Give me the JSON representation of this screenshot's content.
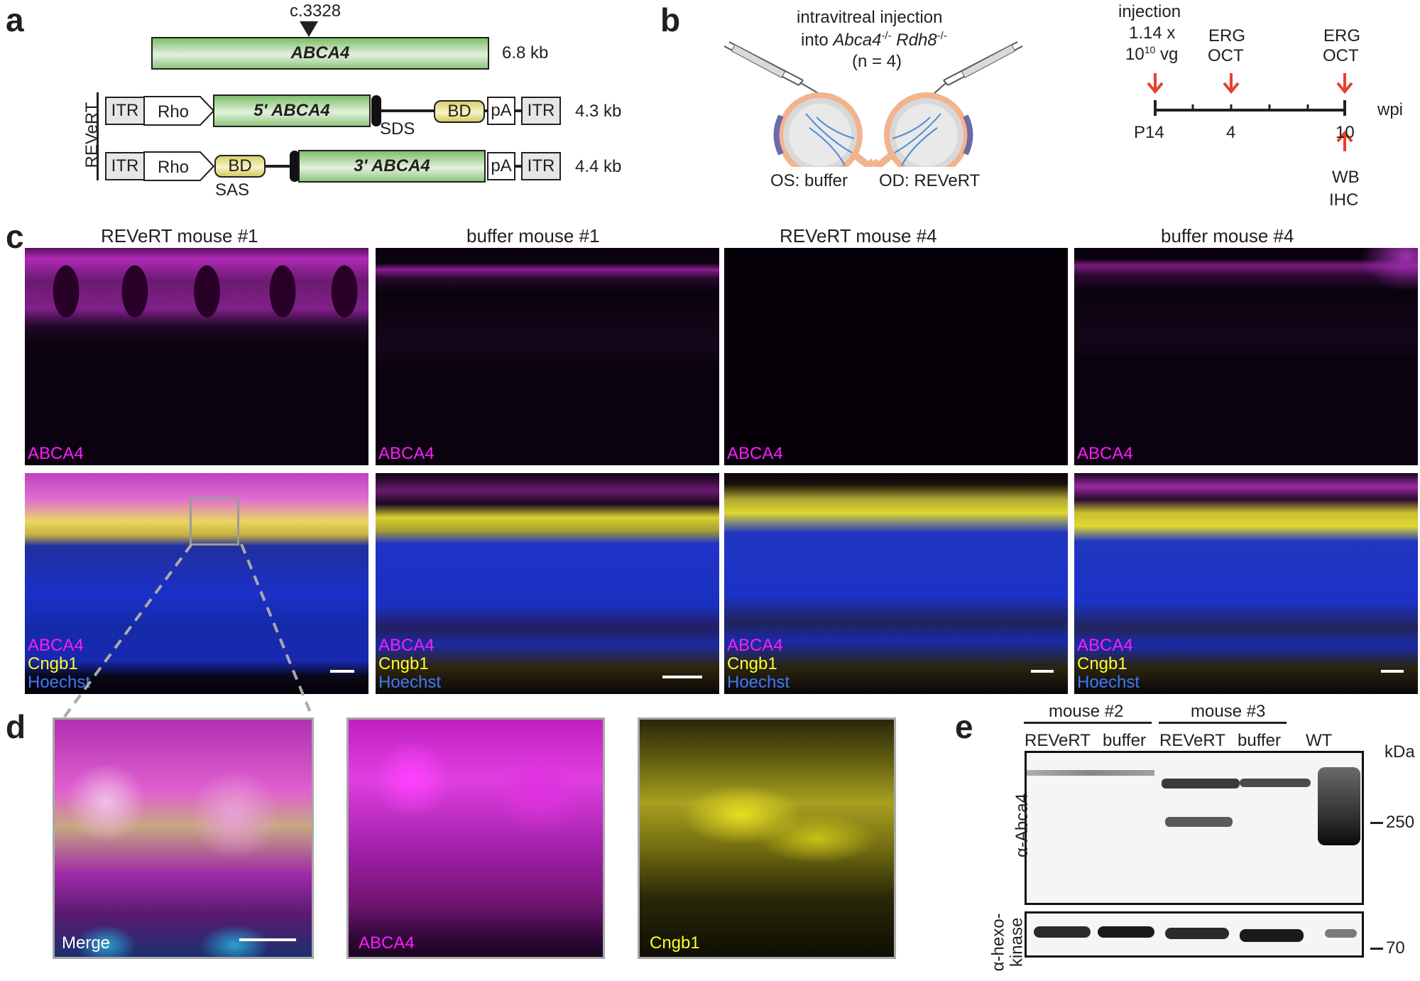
{
  "panel_a": {
    "label": "a",
    "mutation": "c.3328",
    "gene": "ABCA4",
    "gene_size": "6.8 kb",
    "side_label": "REVeRT",
    "vec1": {
      "itr_left": "ITR",
      "promoter": "Rho",
      "cds": "5' ABCA4",
      "sds": "SDS",
      "bd": "BD",
      "pa": "pA",
      "itr_right": "ITR",
      "size": "4.3 kb"
    },
    "vec2": {
      "itr_left": "ITR",
      "promoter": "Rho",
      "bd": "BD",
      "sas": "SAS",
      "cds": "3' ABCA4",
      "pa": "pA",
      "itr_right": "ITR",
      "size": "4.4 kb"
    }
  },
  "panel_b": {
    "label": "b",
    "title_line1": "intravitreal injection",
    "title_line2_prefix": "into ",
    "gene1": "Abca4",
    "sup1": "-/-",
    "gene2": "Rdh8",
    "sup2": "-/-",
    "n_text": "(n = 4)",
    "os_label": "OS: buffer",
    "od_label": "OD: REVeRT",
    "timeline": {
      "injection": "injection",
      "dose_line1": "1.14 x",
      "dose_base": "10",
      "dose_exp": "10",
      "dose_unit": " vg",
      "erg1": "ERG",
      "oct1": "OCT",
      "erg2": "ERG",
      "oct2": "OCT",
      "tick_p14": "P14",
      "tick_4": "4",
      "tick_10": "10",
      "unit": "wpi",
      "wb": "WB",
      "ihc": "IHC"
    },
    "arrow_color": "#e8412c"
  },
  "panel_c": {
    "label": "c",
    "columns": [
      "REVeRT mouse #1",
      "buffer mouse #1",
      "REVeRT mouse #4",
      "buffer mouse #4"
    ],
    "top_channel": "ABCA4",
    "bottom_channels": [
      "ABCA4",
      "Cngb1",
      "Hoechst"
    ]
  },
  "panel_d": {
    "label": "d",
    "merge": "Merge",
    "abca4": "ABCA4",
    "cngb1": "Cngb1"
  },
  "panel_e": {
    "label": "e",
    "group1": "mouse #2",
    "group2": "mouse #3",
    "lanes": [
      "REVeRT",
      "buffer",
      "REVeRT",
      "buffer",
      "WT"
    ],
    "unit": "kDa",
    "blot1_label": "α-Abca4",
    "blot2_label_line1": "α-hexo-",
    "blot2_label_line2": "kinase",
    "marker_250": "250",
    "marker_70": "70"
  },
  "colors": {
    "magenta": "#ff1cff",
    "yellow": "#ffff24",
    "blue": "#3f78ff",
    "green": "#7cbf6a",
    "arrow": "#e8412c"
  }
}
